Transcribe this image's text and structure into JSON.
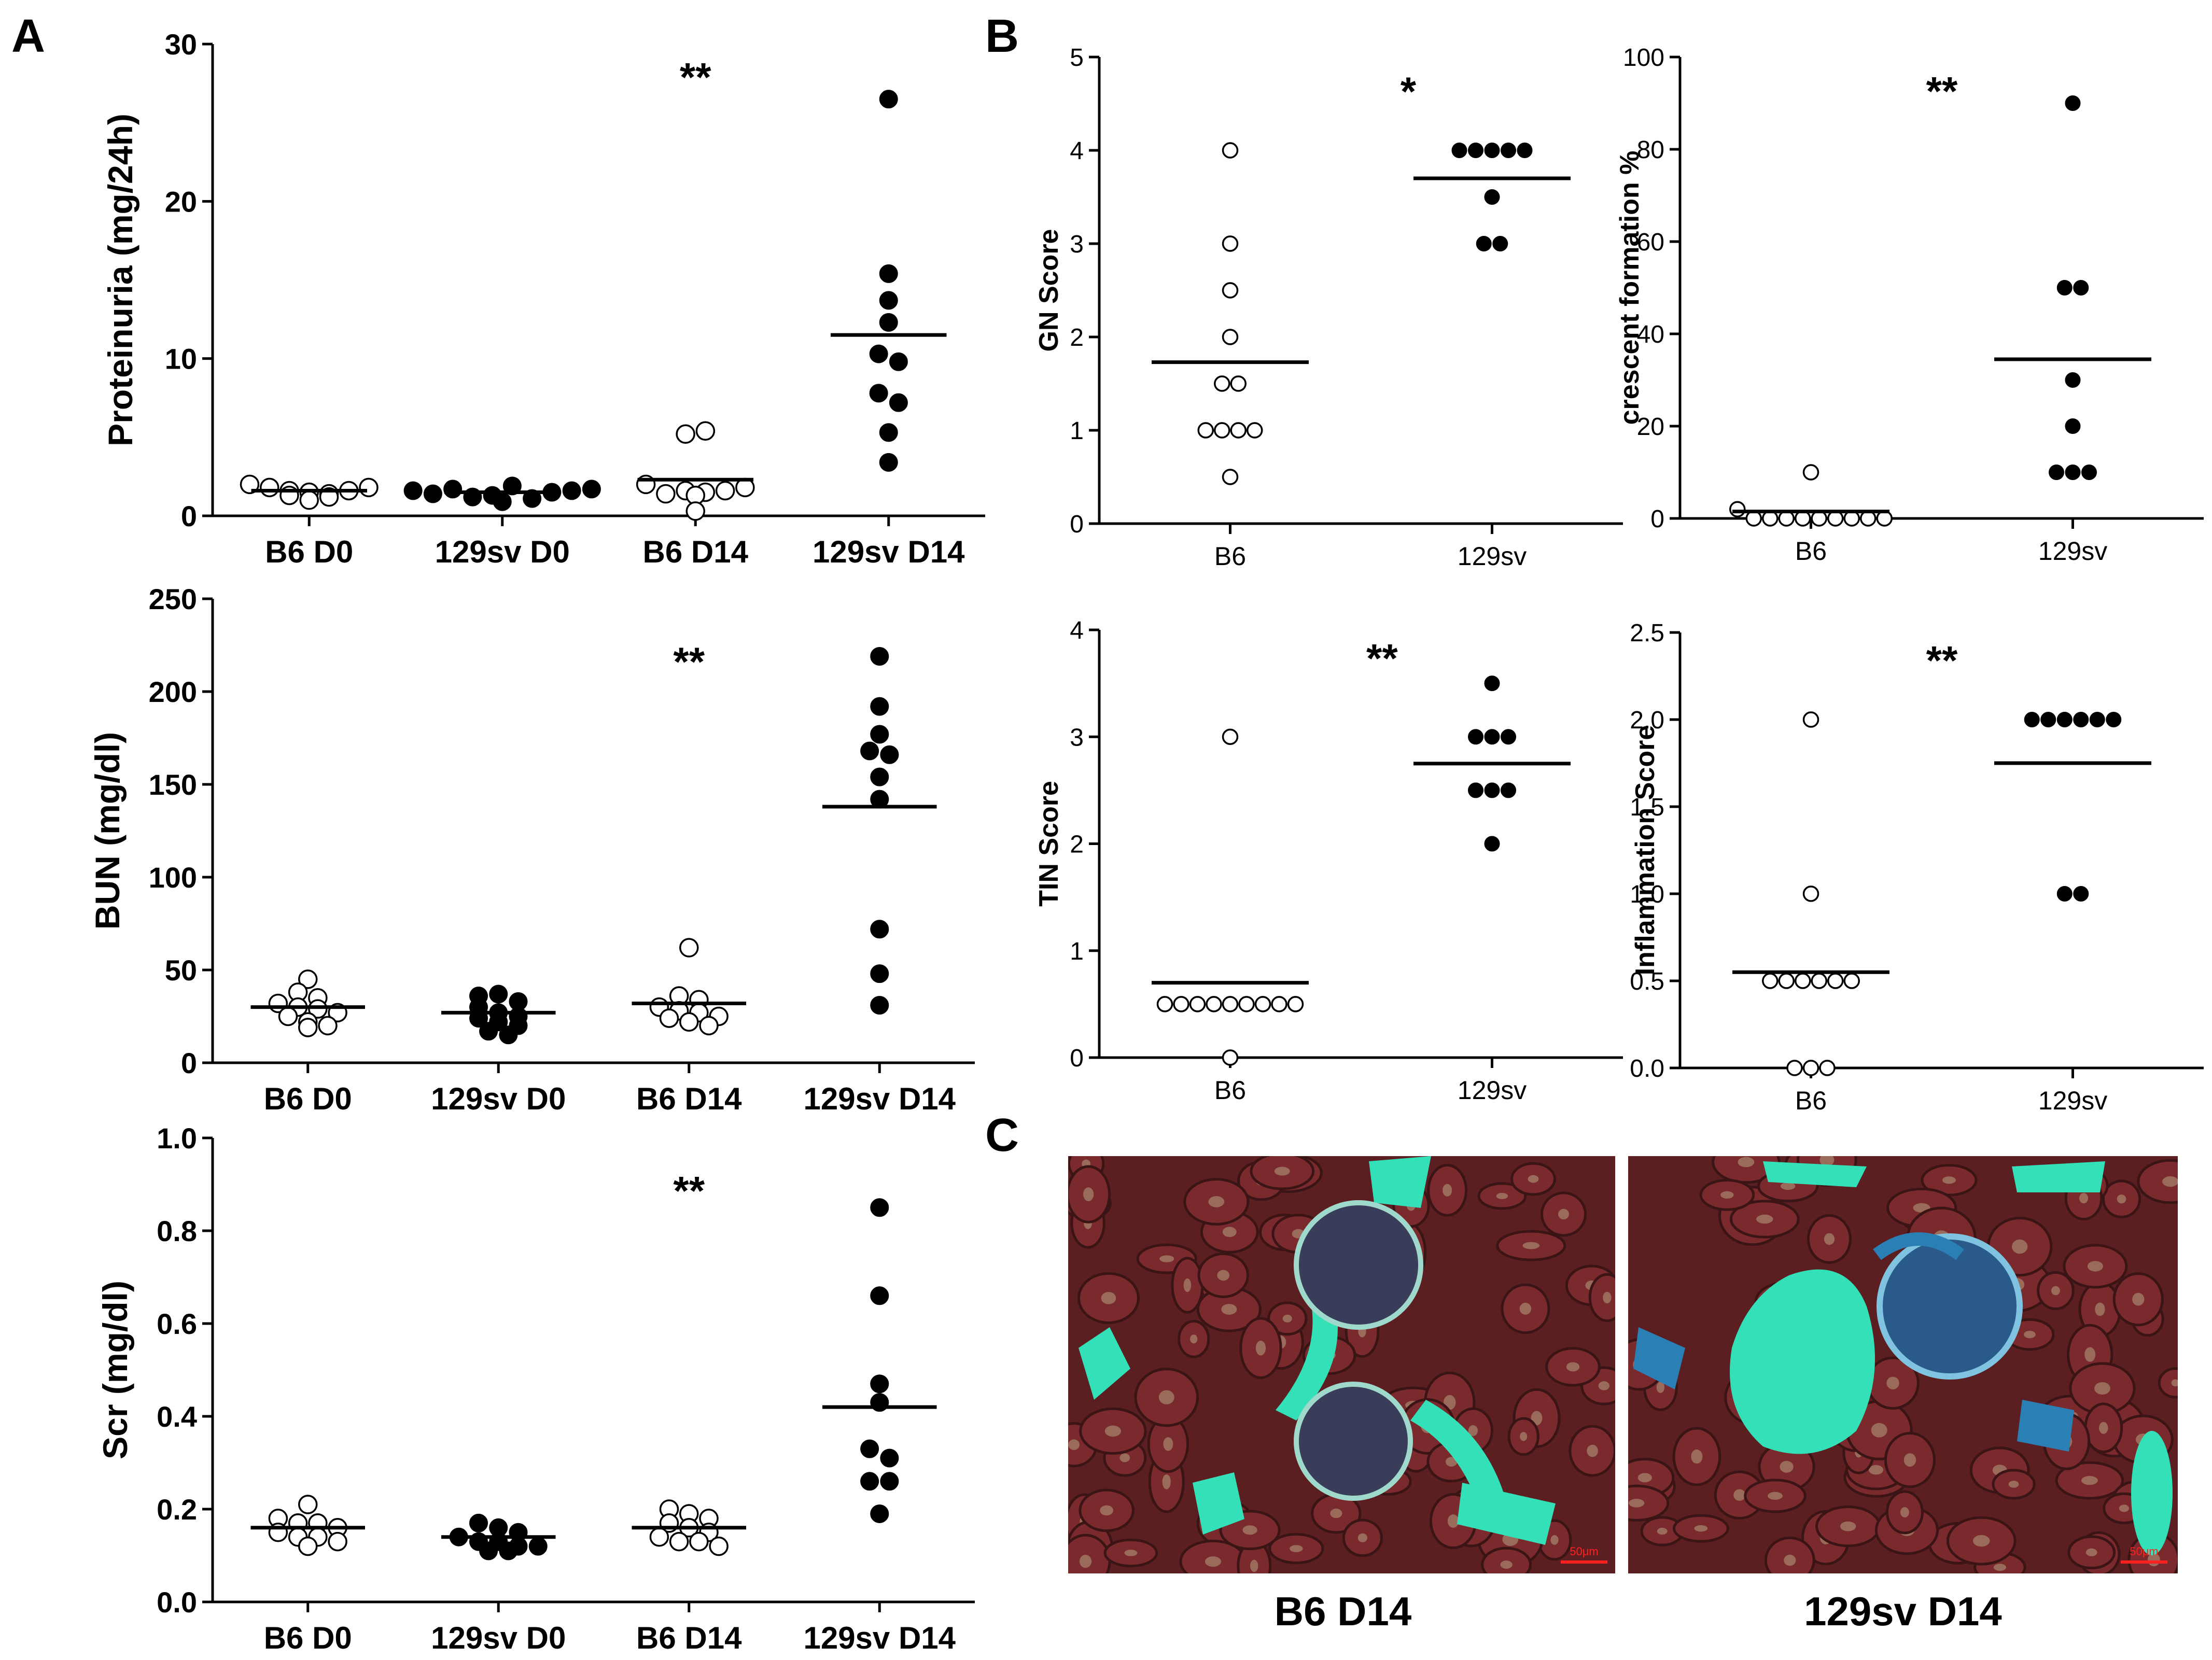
{
  "figure": {
    "panel_labels": [
      "A",
      "B",
      "C"
    ],
    "micrographs": [
      {
        "caption": "B6 D14",
        "scale_bar": "50μm"
      },
      {
        "caption": "129sv D14",
        "scale_bar": "50μm"
      }
    ]
  },
  "colors": {
    "open_marker_fill": "#ffffff",
    "filled_marker_fill": "#000000",
    "axis": "#000000",
    "micrograph_background": "#5b1f22",
    "micrograph_collagen": "#33e0b8",
    "micrograph_fibrosis": "#2a7fb5",
    "scale_bar": "#ff2020"
  },
  "chart_data": [
    {
      "id": "proteinuria",
      "panel": "A",
      "type": "scatter",
      "ylabel": "Proteinuria (mg/24h)",
      "ylim": [
        0,
        30
      ],
      "yticks": [
        0,
        10,
        20,
        30
      ],
      "yticks_text": [
        "0",
        "10",
        "20",
        "30"
      ],
      "categories": [
        "B6 D0",
        "129sv D0",
        "B6 D14",
        "129sv D14"
      ],
      "markers": [
        "open",
        "filled",
        "open",
        "filled"
      ],
      "groups": [
        [
          2.0,
          1.8,
          1.6,
          1.3,
          1.0,
          1.2,
          1.5,
          1.4,
          1.6,
          1.8
        ],
        [
          1.6,
          1.4,
          1.7,
          1.2,
          0.9,
          1.3,
          1.9,
          1.1,
          1.5,
          1.6,
          1.7
        ],
        [
          5.2,
          5.4,
          2.0,
          1.3,
          1.4,
          0.3,
          1.6,
          1.5,
          1.6,
          1.8
        ],
        [
          26.5,
          15.4,
          13.7,
          12.3,
          10.3,
          9.8,
          7.8,
          7.2,
          5.3,
          3.4
        ]
      ],
      "means": [
        1.6,
        1.5,
        2.3,
        11.5
      ],
      "annotations": [
        {
          "text": "**",
          "category": 2,
          "y": 28.0
        }
      ]
    },
    {
      "id": "bun",
      "panel": "A",
      "type": "scatter",
      "ylabel": "BUN (mg/dl)",
      "ylim": [
        0,
        250
      ],
      "yticks": [
        0,
        50,
        100,
        150,
        200,
        250
      ],
      "yticks_text": [
        "0",
        "50",
        "100",
        "150",
        "200",
        "250"
      ],
      "categories": [
        "B6 D0",
        "129sv D0",
        "B6 D14",
        "129sv D14"
      ],
      "markers": [
        "open",
        "filled",
        "open",
        "filled"
      ],
      "groups": [
        [
          45,
          38,
          35,
          32,
          30,
          29,
          27,
          25,
          22,
          20,
          19
        ],
        [
          36,
          37,
          33,
          30,
          27,
          25,
          24,
          22,
          20,
          17,
          15
        ],
        [
          62,
          36,
          34,
          30,
          28,
          27,
          25,
          24,
          22,
          20
        ],
        [
          219,
          192,
          177,
          168,
          166,
          154,
          142,
          72,
          48,
          31
        ]
      ],
      "means": [
        30,
        27,
        32,
        138
      ],
      "annotations": [
        {
          "text": "**",
          "category": 2,
          "y": 217
        }
      ]
    },
    {
      "id": "scr",
      "panel": "A",
      "type": "scatter",
      "ylabel": "Scr (mg/dl)",
      "ylim": [
        0.0,
        1.0
      ],
      "yticks": [
        0.0,
        0.2,
        0.4,
        0.6,
        0.8,
        1.0
      ],
      "yticks_text": [
        "0.0",
        "0.2",
        "0.4",
        "0.6",
        "0.8",
        "1.0"
      ],
      "categories": [
        "B6 D0",
        "129sv D0",
        "B6 D14",
        "129sv D14"
      ],
      "markers": [
        "open",
        "filled",
        "open",
        "filled"
      ],
      "groups": [
        [
          0.21,
          0.18,
          0.17,
          0.17,
          0.16,
          0.15,
          0.14,
          0.14,
          0.13,
          0.12
        ],
        [
          0.17,
          0.16,
          0.15,
          0.14,
          0.13,
          0.13,
          0.12,
          0.12,
          0.11,
          0.11
        ],
        [
          0.2,
          0.19,
          0.18,
          0.17,
          0.16,
          0.15,
          0.14,
          0.13,
          0.13,
          0.12
        ],
        [
          0.85,
          0.66,
          0.47,
          0.43,
          0.33,
          0.31,
          0.26,
          0.26,
          0.19
        ]
      ],
      "means": [
        0.16,
        0.14,
        0.16,
        0.42
      ],
      "annotations": [
        {
          "text": "**",
          "category": 2,
          "y": 0.89
        }
      ]
    },
    {
      "id": "gn",
      "panel": "B",
      "type": "scatter",
      "ylabel": "GN Score",
      "ylim": [
        0,
        5
      ],
      "yticks": [
        0,
        1,
        2,
        3,
        4,
        5
      ],
      "yticks_text": [
        "0",
        "1",
        "2",
        "3",
        "4",
        "5"
      ],
      "categories": [
        "B6",
        "129sv"
      ],
      "markers": [
        "open",
        "filled"
      ],
      "groups": [
        [
          4.0,
          3.0,
          2.5,
          2.0,
          1.5,
          1.5,
          1.0,
          1.0,
          1.0,
          1.0,
          0.5
        ],
        [
          4.0,
          4.0,
          4.0,
          4.0,
          4.0,
          3.5,
          3.0,
          3.0
        ]
      ],
      "means": [
        1.73,
        3.7
      ],
      "annotations": [
        {
          "text": "*",
          "category": 0.68,
          "y": 4.65
        }
      ]
    },
    {
      "id": "crescent",
      "panel": "B",
      "type": "scatter",
      "ylabel": "crescent formation %",
      "ylim": [
        0,
        100
      ],
      "yticks": [
        0,
        20,
        40,
        60,
        80,
        100
      ],
      "yticks_text": [
        "0",
        "20",
        "40",
        "60",
        "80",
        "100"
      ],
      "categories": [
        "B6",
        "129sv"
      ],
      "markers": [
        "open",
        "filled"
      ],
      "groups": [
        [
          10,
          2,
          0,
          0,
          0,
          0,
          0,
          0,
          0,
          0,
          0
        ],
        [
          90,
          50,
          50,
          30,
          20,
          10,
          10,
          10
        ]
      ],
      "means": [
        1.5,
        34.5
      ],
      "annotations": [
        {
          "text": "**",
          "category": 0.5,
          "y": 93
        }
      ]
    },
    {
      "id": "tin",
      "panel": "B",
      "type": "scatter",
      "ylabel": "TIN Score",
      "ylim": [
        0,
        4
      ],
      "yticks": [
        0,
        1,
        2,
        3,
        4
      ],
      "yticks_text": [
        "0",
        "1",
        "2",
        "3",
        "4"
      ],
      "categories": [
        "B6",
        "129sv"
      ],
      "markers": [
        "open",
        "filled"
      ],
      "groups": [
        [
          3.0,
          0.5,
          0.5,
          0.5,
          0.5,
          0.5,
          0.5,
          0.5,
          0.5,
          0.5,
          0.0
        ],
        [
          3.5,
          3.0,
          3.0,
          3.0,
          2.5,
          2.5,
          2.5,
          2.0
        ]
      ],
      "means": [
        0.7,
        2.75
      ],
      "annotations": [
        {
          "text": "**",
          "category": 0.58,
          "y": 3.75
        }
      ]
    },
    {
      "id": "inflammation",
      "panel": "B",
      "type": "scatter",
      "ylabel": "Inflammation Score",
      "ylim": [
        0.0,
        2.5
      ],
      "yticks": [
        0.0,
        0.5,
        1.0,
        1.5,
        2.0,
        2.5
      ],
      "yticks_text": [
        "0.0",
        "0.5",
        "1.0",
        "1.5",
        "2.0",
        "2.5"
      ],
      "categories": [
        "B6",
        "129sv"
      ],
      "markers": [
        "open",
        "filled"
      ],
      "groups": [
        [
          2.0,
          1.0,
          0.5,
          0.5,
          0.5,
          0.5,
          0.5,
          0.5,
          0.0,
          0.0,
          0.0
        ],
        [
          2.0,
          2.0,
          2.0,
          2.0,
          2.0,
          2.0,
          1.0,
          1.0
        ]
      ],
      "means": [
        0.55,
        1.75
      ],
      "annotations": [
        {
          "text": "**",
          "category": 0.5,
          "y": 2.35
        }
      ]
    }
  ]
}
